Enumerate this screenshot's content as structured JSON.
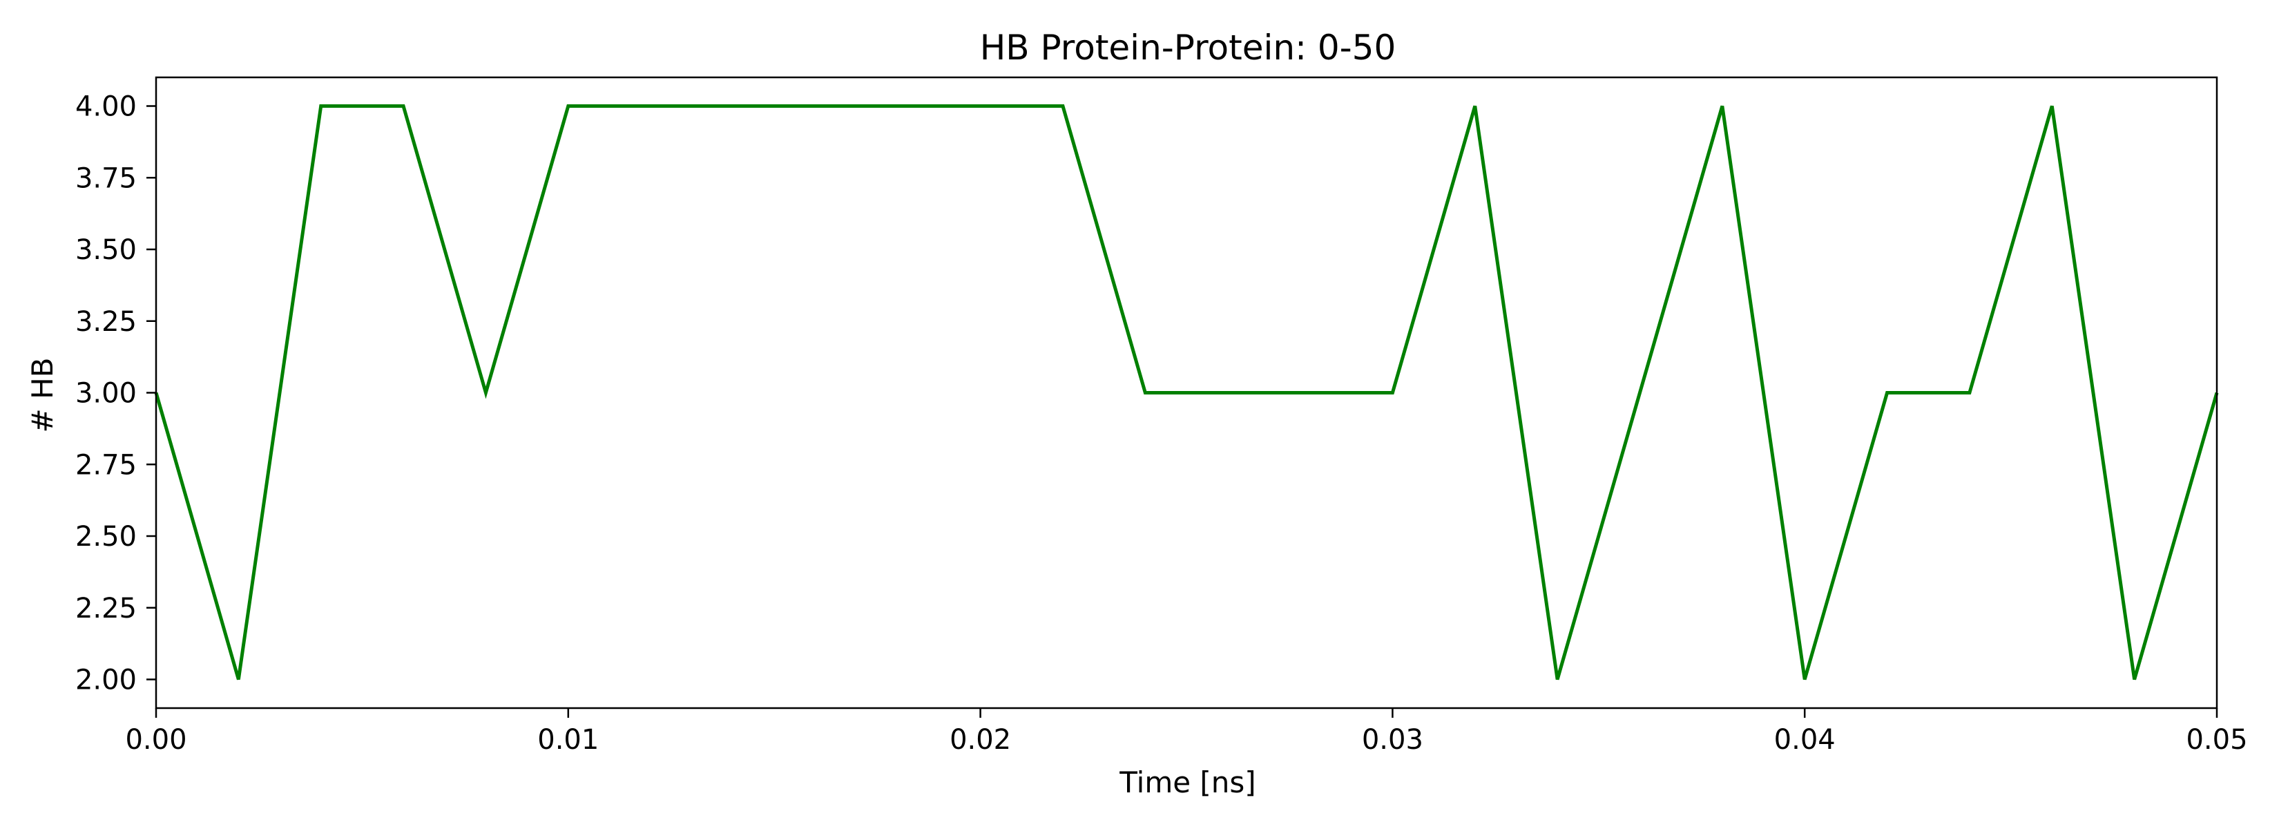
{
  "chart_data": {
    "type": "line",
    "title": "HB Protein-Protein: 0-50",
    "xlabel": "Time [ns]",
    "ylabel": "# HB",
    "xlim": [
      0.0,
      0.05
    ],
    "ylim": [
      1.9,
      4.1
    ],
    "grid": false,
    "x_ticks": [
      0.0,
      0.01,
      0.02,
      0.03,
      0.04,
      0.05
    ],
    "x_tick_labels": [
      "0.00",
      "0.01",
      "0.02",
      "0.03",
      "0.04",
      "0.05"
    ],
    "y_ticks": [
      2.0,
      2.25,
      2.5,
      2.75,
      3.0,
      3.25,
      3.5,
      3.75,
      4.0
    ],
    "y_tick_labels": [
      "2.00",
      "2.25",
      "2.50",
      "2.75",
      "3.00",
      "3.25",
      "3.50",
      "3.75",
      "4.00"
    ],
    "series": [
      {
        "color": "#008000",
        "x": [
          0.0,
          0.002,
          0.004,
          0.006,
          0.008,
          0.01,
          0.012,
          0.014,
          0.016,
          0.018,
          0.02,
          0.022,
          0.024,
          0.026,
          0.028,
          0.03,
          0.032,
          0.034,
          0.036,
          0.038,
          0.04,
          0.042,
          0.044,
          0.046,
          0.048,
          0.05
        ],
        "y": [
          3,
          2,
          4,
          4,
          3,
          4,
          4,
          4,
          4,
          4,
          4,
          4,
          3,
          3,
          3,
          3,
          4,
          2,
          3,
          4,
          2,
          3,
          3,
          4,
          2,
          3
        ]
      }
    ]
  }
}
